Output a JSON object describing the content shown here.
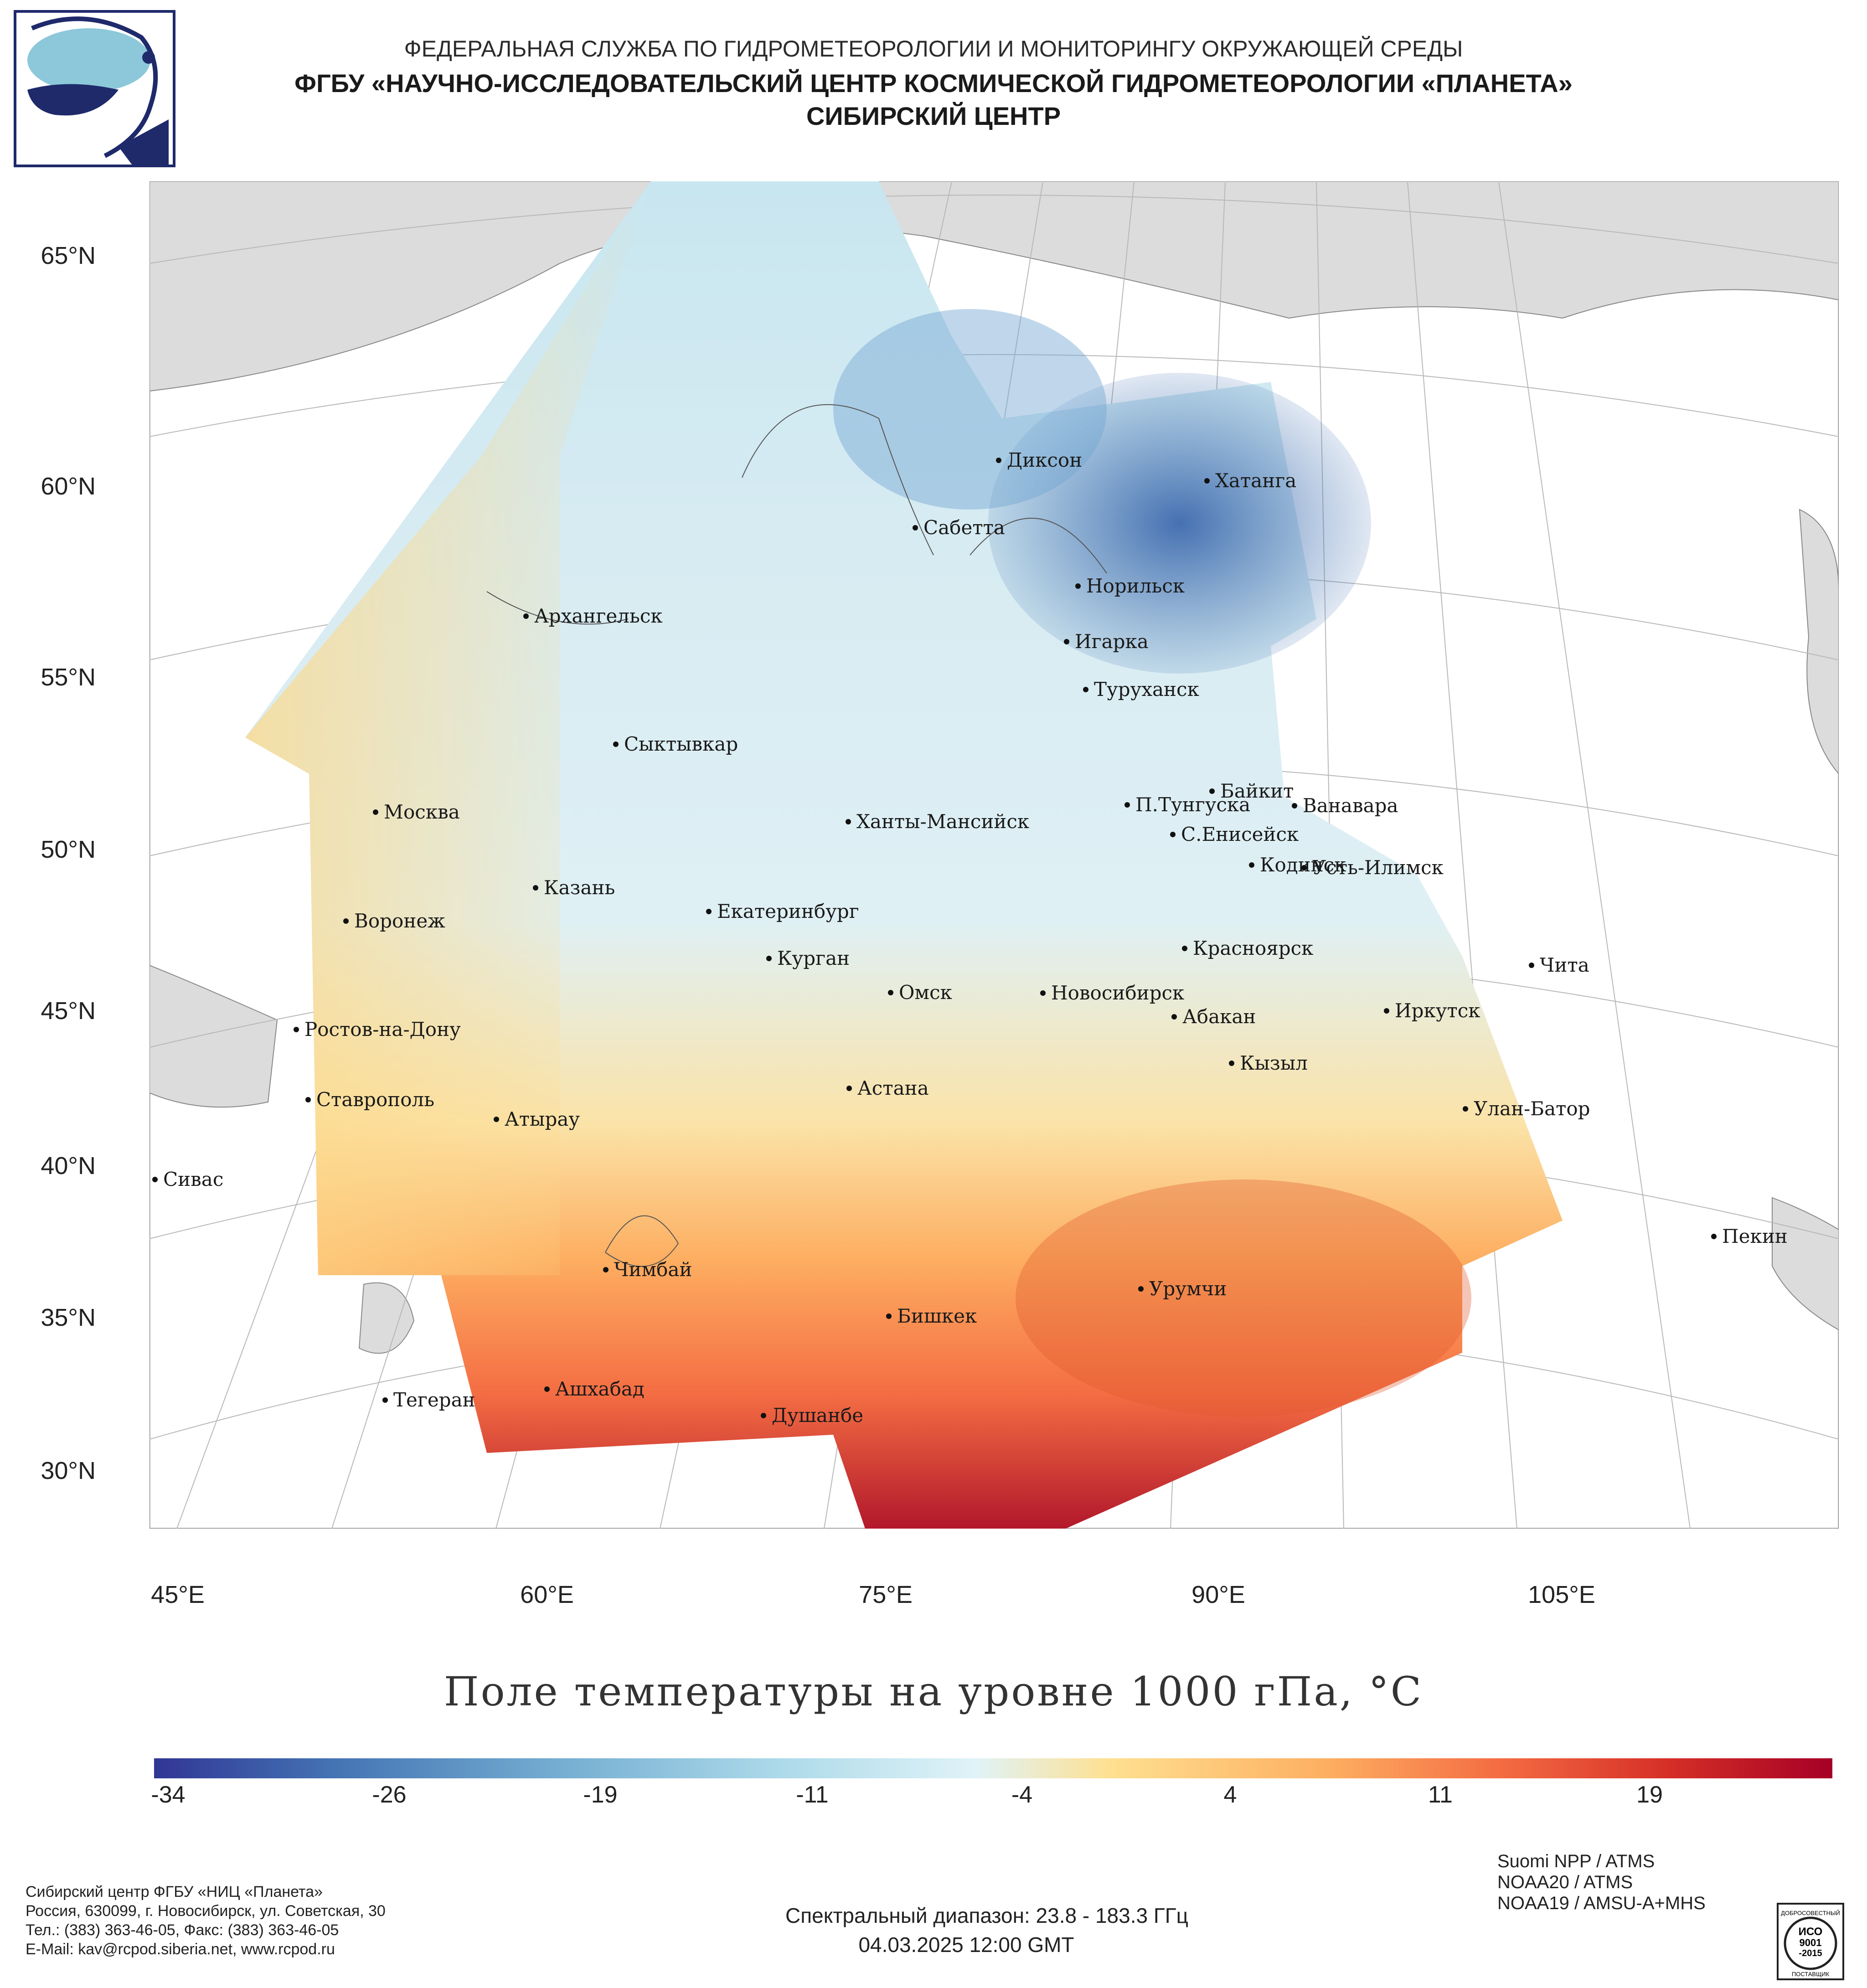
{
  "header": {
    "line1": "ФЕДЕРАЛЬНАЯ СЛУЖБА ПО ГИДРОМЕТЕОРОЛОГИИ И МОНИТОРИНГУ ОКРУЖАЮЩЕЙ СРЕДЫ",
    "line2": "ФГБУ «НАУЧНО-ИССЛЕДОВАТЕЛЬСКИЙ ЦЕНТР КОСМИЧЕСКОЙ ГИДРОМЕТЕОРОЛОГИИ «ПЛАНЕТА»",
    "line3": "СИБИРСКИЙ ЦЕНТР"
  },
  "map": {
    "lat_labels": [
      "65°N",
      "60°N",
      "55°N",
      "50°N",
      "45°N",
      "40°N",
      "35°N",
      "30°N"
    ],
    "lon_labels": [
      "45°E",
      "60°E",
      "75°E",
      "90°E",
      "105°E"
    ],
    "cities": [
      "Диксон",
      "Хатанга",
      "Сабетта",
      "Норильск",
      "Архангельск",
      "Игарка",
      "Туруханск",
      "Сыктывкар",
      "Байкит",
      "П.Тунгуска",
      "Ванавара",
      "Москва",
      "Ханты-Мансийск",
      "С.Енисейск",
      "Кодинск",
      "Усть-Илимск",
      "Казань",
      "Екатеринбург",
      "Воронеж",
      "Красноярск",
      "Курган",
      "Чита",
      "Омск",
      "Новосибирск",
      "Иркутск",
      "Абакан",
      "Ростов-на-Дону",
      "Кызыл",
      "Астана",
      "Ставрополь",
      "Улан-Батор",
      "Атырау",
      "Сивас",
      "Пекин",
      "Чимбай",
      "Урумчи",
      "Бишкек",
      "Ашхабад",
      "Тегеран",
      "Душанбе"
    ]
  },
  "chart_title": "Поле температуры на уровне 1000 гПа, °C",
  "colorbar": {
    "ticks": [
      "-34",
      "-26",
      "-19",
      "-11",
      "-4",
      "4",
      "11",
      "19"
    ],
    "colors": [
      "#313695",
      "#4575b4",
      "#74add1",
      "#abd9e9",
      "#e0f3f8",
      "#fee090",
      "#fdae61",
      "#f46d43",
      "#d73027",
      "#a50026"
    ]
  },
  "footer": {
    "org_lines": [
      "Сибирский центр ФГБУ «НИЦ «Планета»",
      "Россия, 630099, г. Новосибирск, ул. Советская, 30",
      "Тел.: (383) 363-46-05, Факс: (383) 363-46-05",
      "E-Mail: kav@rcpod.siberia.net, www.rcpod.ru"
    ],
    "spectral": "Спектральный диапазон: 23.8 - 183.3 ГГц",
    "datetime": "04.03.2025 12:00 GMT",
    "satellites": [
      "Suomi NPP / ATMS",
      "NOAA20 / ATMS",
      "NOAA19 / AMSU-A+MHS"
    ],
    "iso_text": [
      "ДОБРОСОВЕСТНЫЙ",
      "ИСО",
      "9001",
      "-2015",
      "ПОСТАВЩИК"
    ]
  }
}
